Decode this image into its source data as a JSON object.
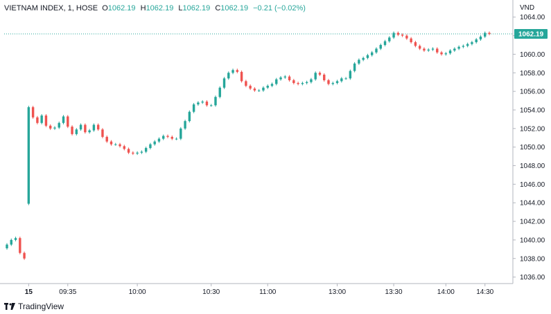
{
  "legend": {
    "symbol": "VIETNAM INDEX, 1, HOSE",
    "o_label": "O",
    "o_value": "1062.19",
    "h_label": "H",
    "h_value": "1062.19",
    "l_label": "L",
    "l_value": "1062.19",
    "c_label": "C",
    "c_value": "1062.19",
    "change": "−0.21 (−0.02%)"
  },
  "unit": "VND",
  "last_price_tag": "1062.19",
  "branding": "TradingView",
  "colors": {
    "up": "#26a69a",
    "down": "#ef5350",
    "grid": "#e0e3eb",
    "text": "#131722"
  },
  "chart_data": {
    "type": "candlestick",
    "x_ticks": [
      "15",
      "09:35",
      "10:00",
      "10:30",
      "11:00",
      "13:00",
      "13:30",
      "14:00",
      "14:30"
    ],
    "y_ticks": [
      1036,
      1038,
      1040,
      1042,
      1044,
      1046,
      1048,
      1050,
      1052,
      1054,
      1056,
      1058,
      1060,
      1062,
      1064
    ],
    "y_tick_labels": [
      "1036.00",
      "1038.00",
      "1040.00",
      "1042.00",
      "1044.00",
      "1046.00",
      "1048.00",
      "1050.00",
      "1052.00",
      "1054.00",
      "1056.00",
      "1058.00",
      "1060.00",
      "1062.00",
      "1064.00"
    ],
    "ylim": [
      1035.3,
      1064.8
    ],
    "last_price": 1062.19,
    "series_close": [
      1039.5,
      1040.0,
      1040.2,
      1038.6,
      1038.0,
      1054.3,
      1053.2,
      1052.6,
      1053.4,
      1052.3,
      1052.0,
      1052.1,
      1052.6,
      1053.3,
      1052.2,
      1051.4,
      1051.9,
      1052.4,
      1051.6,
      1051.8,
      1052.4,
      1051.9,
      1051.1,
      1050.6,
      1050.3,
      1050.3,
      1050.1,
      1049.8,
      1049.4,
      1049.3,
      1049.4,
      1049.5,
      1049.9,
      1050.3,
      1050.6,
      1050.9,
      1051.2,
      1051.1,
      1050.9,
      1050.9,
      1052.0,
      1052.8,
      1053.8,
      1054.6,
      1054.8,
      1054.9,
      1054.5,
      1054.5,
      1055.4,
      1056.4,
      1057.4,
      1058.0,
      1058.3,
      1058.1,
      1057.1,
      1056.6,
      1056.3,
      1056.1,
      1056.1,
      1056.4,
      1056.6,
      1056.8,
      1057.3,
      1057.5,
      1057.6,
      1057.2,
      1056.9,
      1056.8,
      1056.9,
      1057.0,
      1057.3,
      1058.0,
      1057.8,
      1057.2,
      1056.8,
      1056.9,
      1057.1,
      1057.4,
      1057.4,
      1058.2,
      1059.0,
      1059.4,
      1059.6,
      1059.9,
      1060.2,
      1060.6,
      1061.0,
      1061.4,
      1061.8,
      1062.3,
      1062.1,
      1062.0,
      1061.7,
      1061.3,
      1060.9,
      1060.6,
      1060.4,
      1060.5,
      1060.6,
      1060.2,
      1060.0,
      1060.1,
      1060.4,
      1060.6,
      1060.8,
      1060.9,
      1061.1,
      1061.3,
      1061.6,
      1061.9,
      1062.3,
      1062.19
    ]
  }
}
